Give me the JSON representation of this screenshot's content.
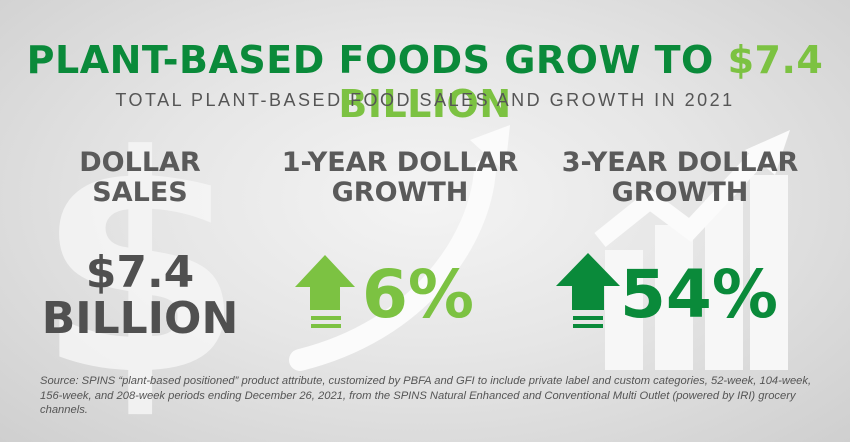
{
  "title": {
    "main": "PLANT-BASED FOODS GROW TO ",
    "accent": "$7.4 BILLION"
  },
  "subtitle": "TOTAL PLANT-BASED FOOD SALES AND GROWTH IN 2021",
  "columns": [
    {
      "label_line1": "DOLLAR",
      "label_line2": "SALES",
      "value_line1": "$7.4",
      "value_line2": "BILLION"
    },
    {
      "label_line1": "1-YEAR DOLLAR",
      "label_line2": "GROWTH",
      "value": "6%",
      "color": "#7cc242"
    },
    {
      "label_line1": "3-YEAR DOLLAR",
      "label_line2": "GROWTH",
      "value": "54%",
      "color": "#0a8a3a"
    }
  ],
  "source": "Source: SPINS “plant-based positioned” product attribute, customized by PBFA and GFI to include private label and custom categories, 52-week, 104-week, 156-week, and 208-week periods ending December 26, 2021, from the SPINS Natural Enhanced and Conventional Multi Outlet (powered by IRI) grocery channels.",
  "colors": {
    "dark_green": "#0a8a3a",
    "light_green": "#7cc242",
    "gray_text": "#505050"
  },
  "icons": [
    "dollar-sign-icon",
    "curved-arrow-icon",
    "bar-chart-arrow-icon",
    "up-arrow-icon"
  ]
}
